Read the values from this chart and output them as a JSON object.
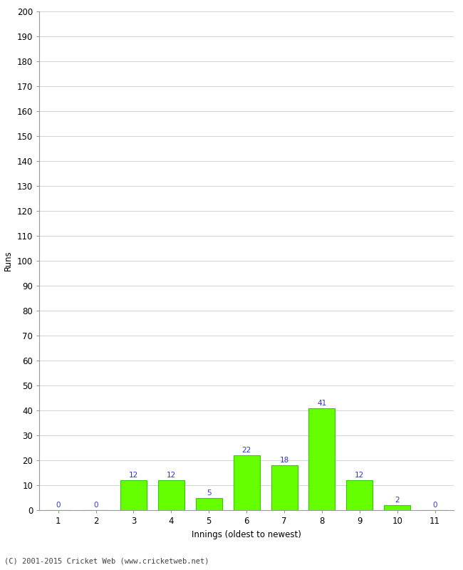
{
  "innings": [
    1,
    2,
    3,
    4,
    5,
    6,
    7,
    8,
    9,
    10,
    11
  ],
  "runs": [
    0,
    0,
    12,
    12,
    5,
    22,
    18,
    41,
    12,
    2,
    0
  ],
  "bar_color": "#66ff00",
  "bar_edge_color": "#33cc00",
  "label_color": "#3333cc",
  "xlabel": "Innings (oldest to newest)",
  "ylabel": "Runs",
  "ylim": [
    0,
    200
  ],
  "yticks": [
    0,
    10,
    20,
    30,
    40,
    50,
    60,
    70,
    80,
    90,
    100,
    110,
    120,
    130,
    140,
    150,
    160,
    170,
    180,
    190,
    200
  ],
  "background_color": "#ffffff",
  "footer_text": "(C) 2001-2015 Cricket Web (www.cricketweb.net)",
  "label_fontsize": 7.5,
  "axis_fontsize": 8.5,
  "footer_fontsize": 7.5,
  "grid_color": "#cccccc"
}
